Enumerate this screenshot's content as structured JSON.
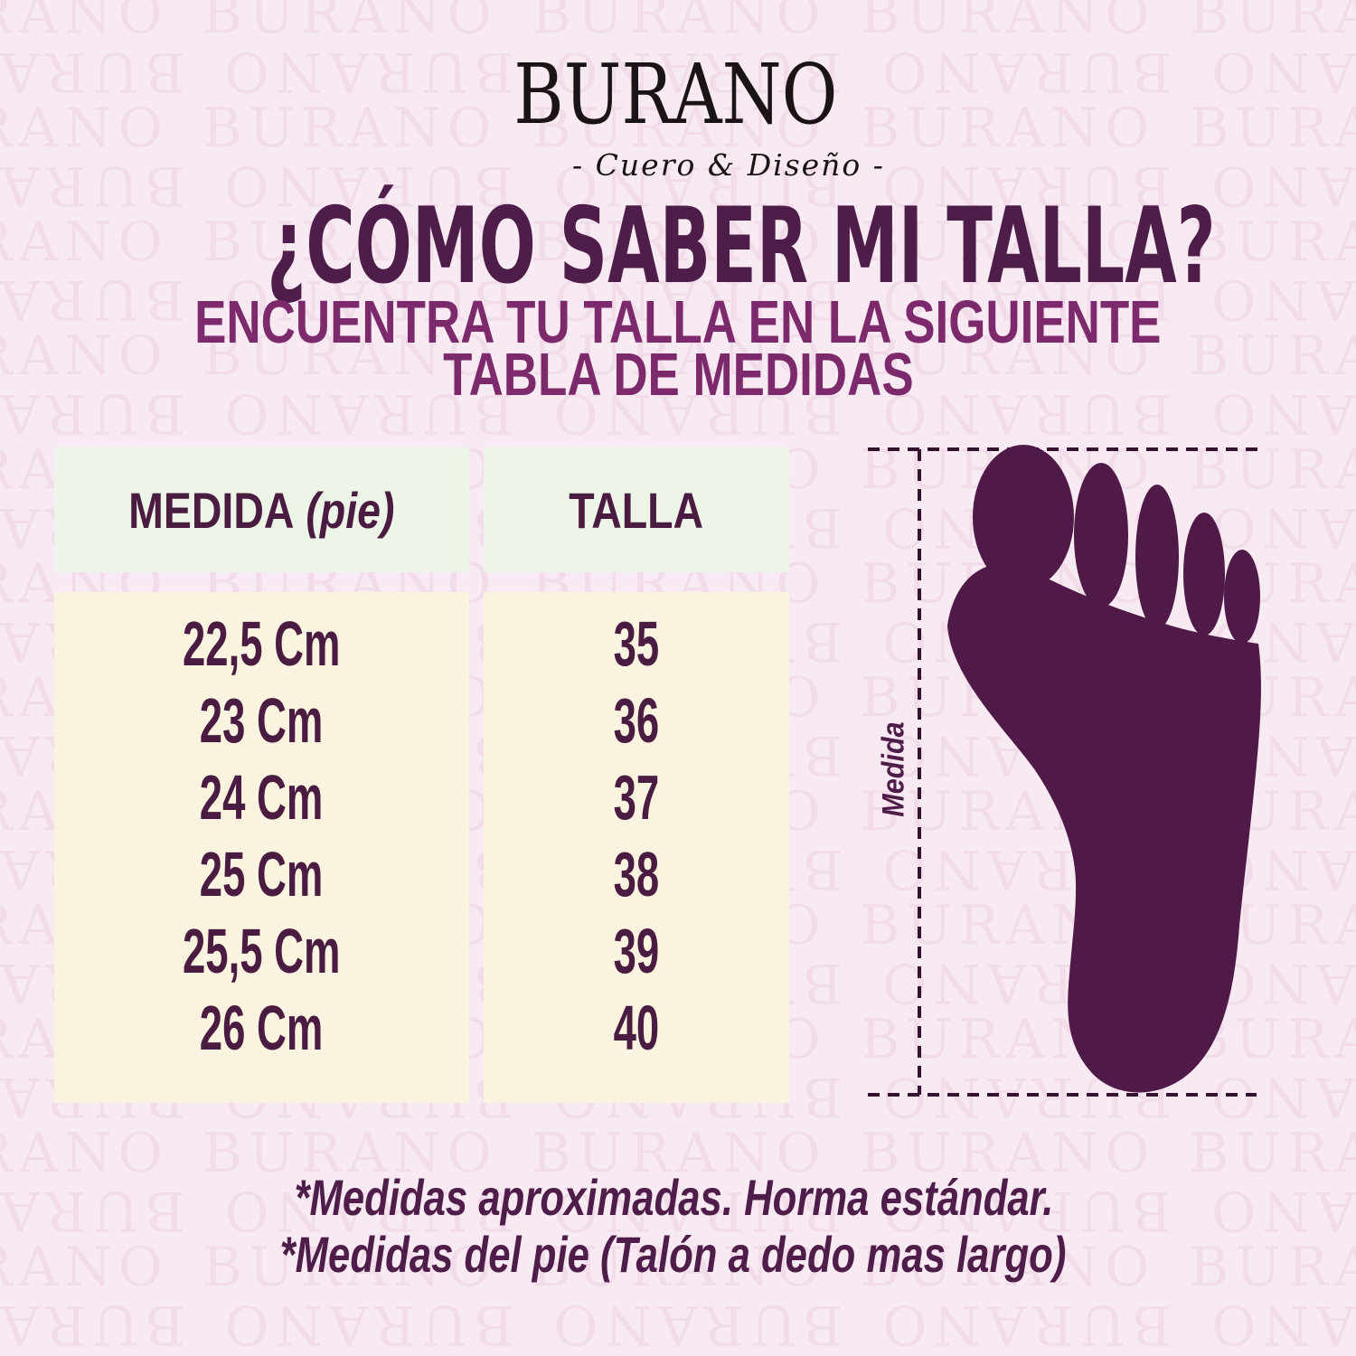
{
  "brand": {
    "logo_text": "BURANO",
    "tagline": "- Cuero & Diseño -",
    "watermark_text": "BURANO"
  },
  "heading": {
    "title": "¿CÓMO SABER MI TALLA?",
    "subtitle_line1": "ENCUENTRA TU TALLA EN LA SIGUIENTE",
    "subtitle_line2": "TABLA DE MEDIDAS"
  },
  "size_table": {
    "header": {
      "medida_label": "MEDIDA",
      "medida_qualifier": "(pie)",
      "talla_label": "TALLA"
    },
    "rows": [
      {
        "medida": "22,5 Cm",
        "talla": "35"
      },
      {
        "medida": "23 Cm",
        "talla": "36"
      },
      {
        "medida": "24 Cm",
        "talla": "37"
      },
      {
        "medida": "25 Cm",
        "talla": "38"
      },
      {
        "medida": "25,5 Cm",
        "talla": "39"
      },
      {
        "medida": "26 Cm",
        "talla": "40"
      }
    ]
  },
  "foot_diagram": {
    "measure_label": "Medida"
  },
  "footnotes": {
    "line1": "*Medidas aproximadas. Horma estándar.",
    "line2": "*Medidas del pie (Talón a dedo mas largo)"
  },
  "colors": {
    "background": "#f8eaf2",
    "watermark": "#f2dcea",
    "logo_text": "#1a1417",
    "title": "#4e1d49",
    "subtitle": "#7d2a6d",
    "table_header_bg": "#edf5e8",
    "table_body_bg": "#faf3e0",
    "table_text": "#4a1c42",
    "foot_silhouette": "#4f1a47",
    "dashed_line": "#35122f"
  }
}
